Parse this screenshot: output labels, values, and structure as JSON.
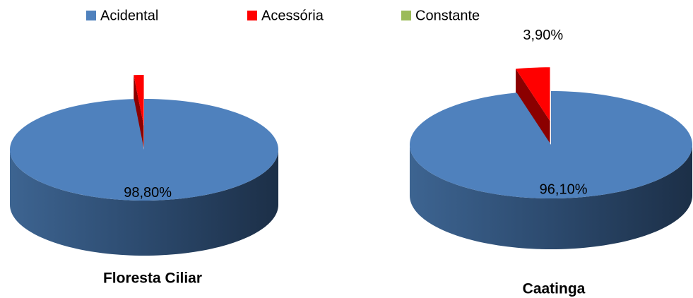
{
  "chart_data": [
    {
      "type": "pie",
      "title": "Floresta Ciliar",
      "categories": [
        "Acidental",
        "Acessória",
        "Constante"
      ],
      "colors": [
        "#4f81bd",
        "#ff0000",
        "#9bbb59"
      ],
      "values": [
        98.8,
        1.2,
        0
      ],
      "value_labels": [
        "98,80%",
        null,
        null
      ]
    },
    {
      "type": "pie",
      "title": "Caatinga",
      "categories": [
        "Acidental",
        "Acessória",
        "Constante"
      ],
      "colors": [
        "#4f81bd",
        "#ff0000",
        "#9bbb59"
      ],
      "values": [
        96.1,
        3.9,
        0
      ],
      "value_labels": [
        "96,10%",
        "3,90%",
        null
      ]
    }
  ]
}
